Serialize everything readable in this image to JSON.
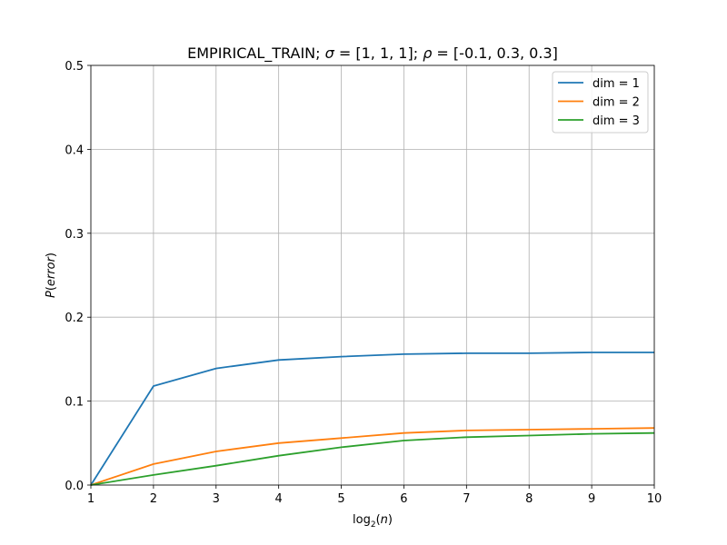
{
  "chart_data": {
    "type": "line",
    "title_parts": {
      "prefix": "EMPIRICAL_TRAIN;  ",
      "sigma_symbol": "σ",
      "sigma_value": " = [1, 1, 1];  ",
      "rho_symbol": "ρ",
      "rho_value": " = [-0.1, 0.3, 0.3]"
    },
    "xlabel_parts": {
      "base": "log",
      "sub": "2",
      "rest": "(",
      "var": "n",
      "end": ")"
    },
    "ylabel_parts": {
      "p": "P",
      "open": "(",
      "var": "error",
      "close": ")"
    },
    "x": [
      1,
      2,
      3,
      4,
      5,
      6,
      7,
      8,
      9,
      10
    ],
    "xlim": [
      1,
      10
    ],
    "ylim": [
      0,
      0.5
    ],
    "xticks": [
      "1",
      "2",
      "3",
      "4",
      "5",
      "6",
      "7",
      "8",
      "9",
      "10"
    ],
    "yticks": [
      "0.0",
      "0.1",
      "0.2",
      "0.3",
      "0.4",
      "0.5"
    ],
    "grid": true,
    "legend_position": "top-right",
    "series": [
      {
        "name": "dim = 1",
        "color": "#1f77b4",
        "values": [
          0.0,
          0.118,
          0.139,
          0.149,
          0.153,
          0.156,
          0.157,
          0.157,
          0.158,
          0.158
        ]
      },
      {
        "name": "dim = 2",
        "color": "#ff7f0e",
        "values": [
          0.0,
          0.025,
          0.04,
          0.05,
          0.056,
          0.062,
          0.065,
          0.066,
          0.067,
          0.068
        ]
      },
      {
        "name": "dim = 3",
        "color": "#2ca02c",
        "values": [
          0.0,
          0.012,
          0.023,
          0.035,
          0.045,
          0.053,
          0.057,
          0.059,
          0.061,
          0.062
        ]
      }
    ]
  }
}
